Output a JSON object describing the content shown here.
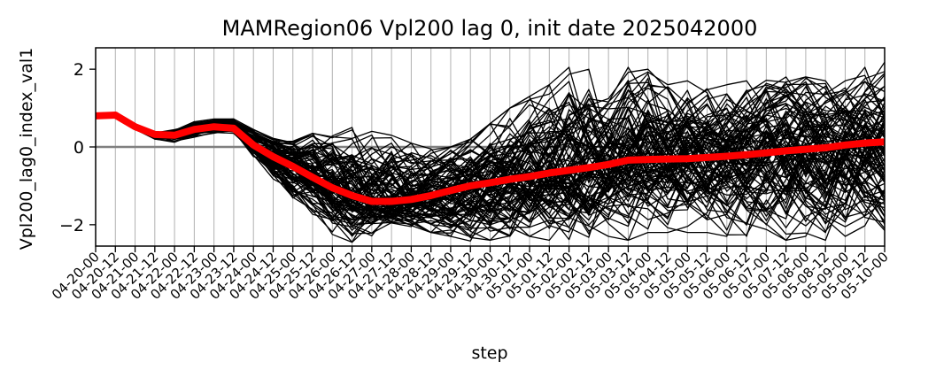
{
  "chart_data": {
    "type": "line",
    "title": "MAMRegion06 Vpl200 lag 0, init date 2025042000",
    "xlabel": "step",
    "ylabel": "Vpl200_lag0_index_val1",
    "ylim": [
      -2.55,
      2.55
    ],
    "yticks": [
      2,
      0,
      -2
    ],
    "ytick_labels": [
      "2",
      "0",
      "−2"
    ],
    "grid": "vertical",
    "legend": "none",
    "x": [
      "04-20-00",
      "04-20-12",
      "04-21-00",
      "04-21-12",
      "04-22-00",
      "04-22-12",
      "04-23-00",
      "04-23-12",
      "04-24-00",
      "04-24-12",
      "04-25-00",
      "04-25-12",
      "04-26-00",
      "04-26-12",
      "04-27-00",
      "04-27-12",
      "04-28-00",
      "04-28-12",
      "04-29-00",
      "04-29-12",
      "04-30-00",
      "04-30-12",
      "05-01-00",
      "05-01-12",
      "05-02-00",
      "05-02-12",
      "05-03-00",
      "05-03-12",
      "05-04-00",
      "05-04-12",
      "05-05-00",
      "05-05-12",
      "05-06-00",
      "05-06-12",
      "05-07-00",
      "05-07-12",
      "05-08-00",
      "05-08-12",
      "05-09-00",
      "05-09-12",
      "05-10-00"
    ],
    "reference_line": {
      "y": 0,
      "color": "#808080"
    },
    "mean_series": {
      "color": "#ff0000",
      "values": [
        0.8,
        0.82,
        0.52,
        0.32,
        0.3,
        0.45,
        0.52,
        0.48,
        0.05,
        -0.25,
        -0.5,
        -0.78,
        -1.05,
        -1.25,
        -1.4,
        -1.4,
        -1.35,
        -1.25,
        -1.12,
        -1.0,
        -0.92,
        -0.83,
        -0.76,
        -0.67,
        -0.6,
        -0.53,
        -0.45,
        -0.34,
        -0.32,
        -0.31,
        -0.3,
        -0.27,
        -0.24,
        -0.2,
        -0.15,
        -0.1,
        -0.06,
        -0.02,
        0.05,
        0.1,
        0.13
      ]
    },
    "ensemble": {
      "color": "#000000",
      "member_count": 100,
      "envelope_low": [
        0.8,
        0.8,
        0.45,
        0.2,
        0.12,
        0.25,
        0.35,
        0.35,
        -0.3,
        -0.9,
        -1.4,
        -1.8,
        -2.25,
        -2.45,
        -2.3,
        -2.1,
        -2.05,
        -2.2,
        -2.3,
        -2.5,
        -2.4,
        -2.3,
        -2.3,
        -2.4,
        -2.4,
        -2.5,
        -2.3,
        -2.4,
        -2.2,
        -2.2,
        -2.2,
        -2.2,
        -2.3,
        -2.3,
        -2.2,
        -2.4,
        -2.3,
        -2.4,
        -2.3,
        -2.1,
        -2.3
      ],
      "envelope_high": [
        0.8,
        0.8,
        0.55,
        0.38,
        0.45,
        0.65,
        0.72,
        0.72,
        0.45,
        0.22,
        0.18,
        0.35,
        0.52,
        0.5,
        0.4,
        0.3,
        0.1,
        -0.05,
        0.0,
        0.2,
        0.6,
        1.0,
        1.3,
        1.6,
        2.05,
        2.0,
        1.5,
        2.05,
        2.0,
        1.6,
        1.7,
        1.5,
        1.6,
        1.7,
        1.75,
        1.8,
        1.8,
        1.7,
        1.7,
        2.05,
        2.25
      ]
    }
  }
}
